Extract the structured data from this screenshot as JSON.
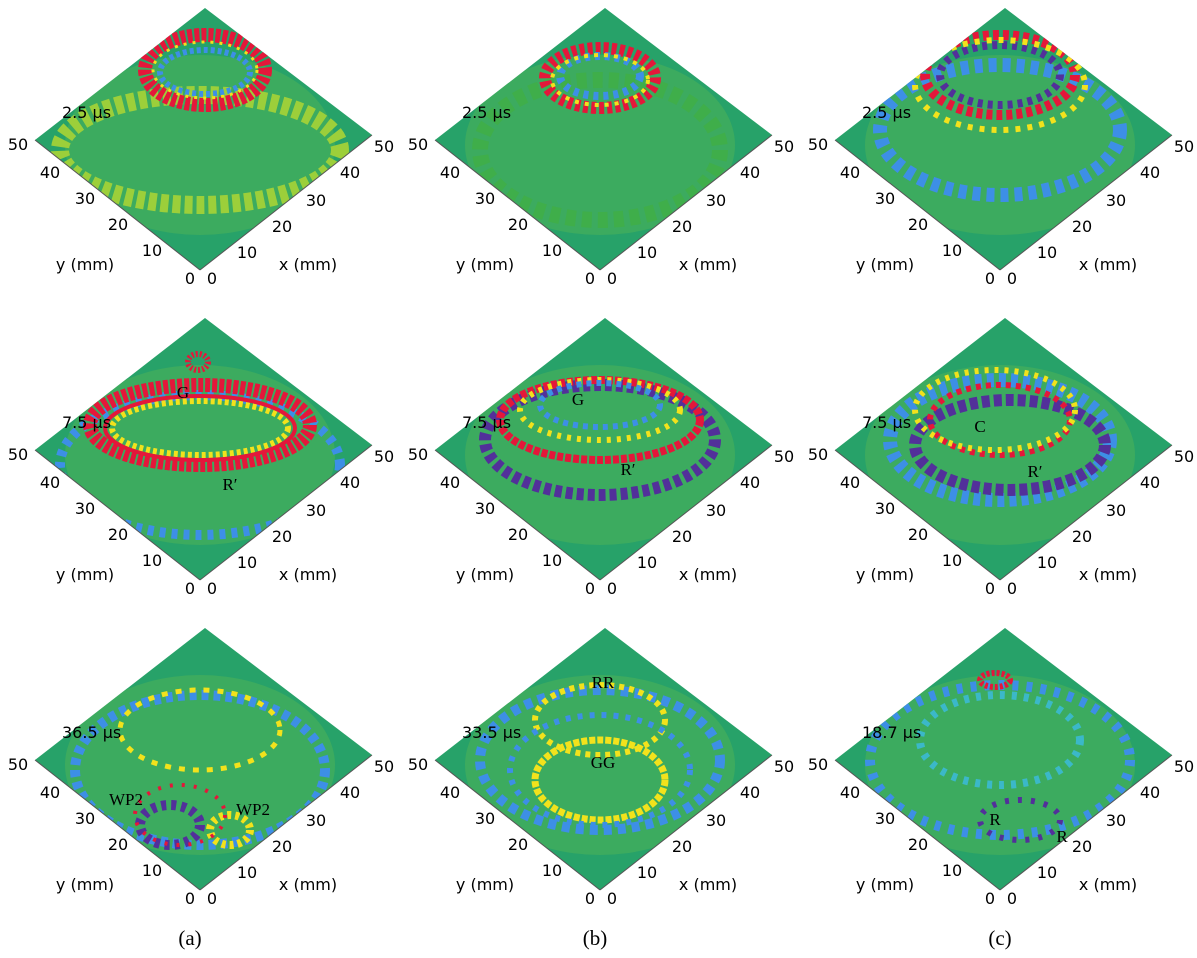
{
  "panels": [
    [
      {
        "time": "2.5 µs",
        "annotations": []
      },
      {
        "time": "7.5 µs",
        "annotations": [
          "G",
          "R′"
        ]
      },
      {
        "time": "36.5 µs",
        "annotations": [
          "WP2",
          "WP2"
        ]
      }
    ],
    [
      {
        "time": "2.5 µs",
        "annotations": []
      },
      {
        "time": "7.5 µs",
        "annotations": [
          "G",
          "R′"
        ]
      },
      {
        "time": "33.5 µs",
        "annotations": [
          "RR",
          "GG"
        ]
      }
    ],
    [
      {
        "time": "2.5 µs",
        "annotations": []
      },
      {
        "time": "7.5 µs",
        "annotations": [
          "C",
          "R′"
        ]
      },
      {
        "time": "18.7 µs",
        "annotations": [
          "R",
          "R"
        ]
      }
    ]
  ],
  "y_ticks": [
    "50",
    "40",
    "30",
    "20",
    "10",
    "0"
  ],
  "x_ticks": [
    "0",
    "10",
    "20",
    "30",
    "40",
    "50"
  ],
  "y_label": "y (mm)",
  "x_label": "x (mm)",
  "captions": [
    "(a)",
    "(b)",
    "(c)"
  ]
}
